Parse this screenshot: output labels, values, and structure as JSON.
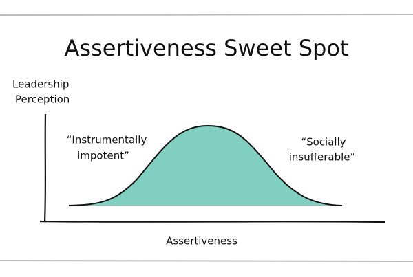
{
  "title": "Assertiveness Sweet Spot",
  "y_label": [
    "Leadership",
    "Perception"
  ],
  "x_label": "Assertiveness",
  "annotations": [
    [
      "“Instrumentally",
      "impotent”"
    ],
    [
      "“Socially",
      "insufferable”"
    ]
  ]
}
